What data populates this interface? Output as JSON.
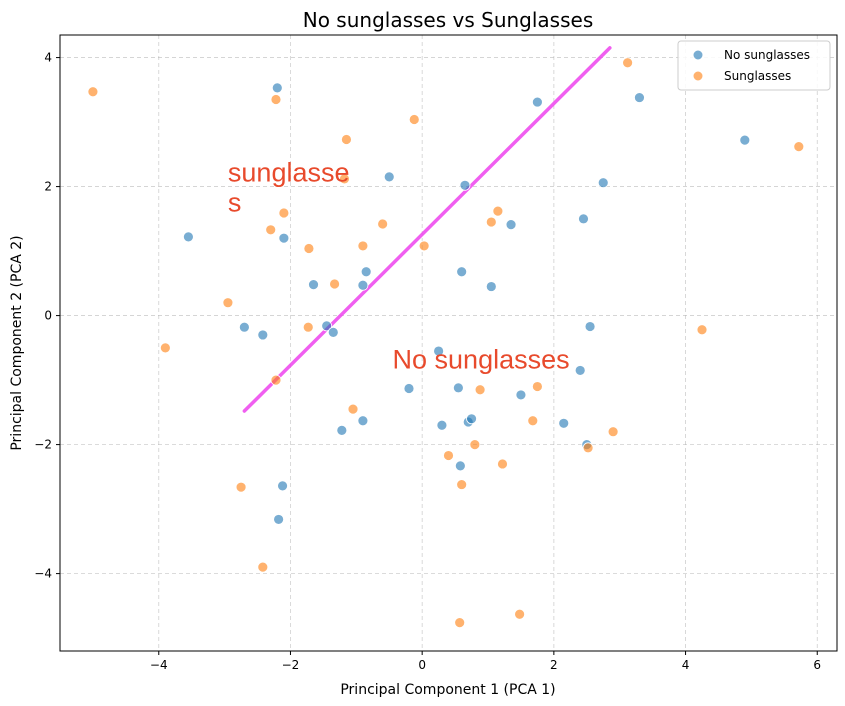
{
  "chart_data": {
    "type": "scatter",
    "title": "No sunglasses vs Sunglasses",
    "xlabel": "Principal Component 1 (PCA 1)",
    "ylabel": "Principal Component 2 (PCA 2)",
    "xlim": [
      -5.5,
      6.3
    ],
    "ylim": [
      -5.2,
      4.35
    ],
    "xticks": [
      -4,
      -2,
      0,
      2,
      4,
      6
    ],
    "yticks": [
      -4,
      -2,
      0,
      2,
      4
    ],
    "xtick_labels": [
      "−4",
      "−2",
      "0",
      "2",
      "4",
      "6"
    ],
    "ytick_labels": [
      "−4",
      "−2",
      "0",
      "2",
      "4"
    ],
    "grid": true,
    "legend_placement": "top-right",
    "series": [
      {
        "name": "No sunglasses",
        "color": "#1f77b4",
        "points": [
          [
            -2.2,
            3.53
          ],
          [
            -3.55,
            1.22
          ],
          [
            -2.1,
            1.2
          ],
          [
            -1.65,
            0.48
          ],
          [
            -0.85,
            0.68
          ],
          [
            -0.9,
            0.47
          ],
          [
            -0.5,
            2.15
          ],
          [
            0.65,
            2.02
          ],
          [
            0.6,
            0.68
          ],
          [
            1.05,
            0.45
          ],
          [
            1.35,
            1.41
          ],
          [
            1.75,
            3.31
          ],
          [
            2.45,
            1.5
          ],
          [
            2.75,
            2.06
          ],
          [
            3.3,
            3.38
          ],
          [
            4.9,
            2.72
          ],
          [
            -2.7,
            -0.18
          ],
          [
            -2.42,
            -0.3
          ],
          [
            -1.45,
            -0.16
          ],
          [
            -1.35,
            -0.26
          ],
          [
            0.25,
            -0.55
          ],
          [
            2.55,
            -0.17
          ],
          [
            2.4,
            -0.85
          ],
          [
            -0.2,
            -1.13
          ],
          [
            0.55,
            -1.12
          ],
          [
            1.5,
            -1.23
          ],
          [
            0.7,
            -1.65
          ],
          [
            0.75,
            -1.6
          ],
          [
            0.3,
            -1.7
          ],
          [
            2.15,
            -1.67
          ],
          [
            2.5,
            -2.0
          ],
          [
            -0.9,
            -1.63
          ],
          [
            -1.22,
            -1.78
          ],
          [
            0.58,
            -2.33
          ],
          [
            -2.12,
            -2.64
          ],
          [
            -2.18,
            -3.16
          ]
        ]
      },
      {
        "name": "Sunglasses",
        "color": "#ff7f0e",
        "points": [
          [
            -5.0,
            3.47
          ],
          [
            -2.22,
            3.35
          ],
          [
            -0.12,
            3.04
          ],
          [
            -1.15,
            2.73
          ],
          [
            -1.18,
            2.12
          ],
          [
            3.12,
            3.92
          ],
          [
            5.72,
            2.62
          ],
          [
            -2.1,
            1.59
          ],
          [
            -2.3,
            1.33
          ],
          [
            -1.72,
            1.04
          ],
          [
            -0.6,
            1.42
          ],
          [
            -0.9,
            1.08
          ],
          [
            0.03,
            1.08
          ],
          [
            1.05,
            1.45
          ],
          [
            1.15,
            1.62
          ],
          [
            -2.95,
            0.2
          ],
          [
            -1.33,
            0.49
          ],
          [
            -1.73,
            -0.18
          ],
          [
            -3.9,
            -0.5
          ],
          [
            4.25,
            -0.22
          ],
          [
            -2.22,
            -1.0
          ],
          [
            -1.05,
            -1.45
          ],
          [
            0.88,
            -1.15
          ],
          [
            1.75,
            -1.1
          ],
          [
            1.68,
            -1.63
          ],
          [
            2.9,
            -1.8
          ],
          [
            2.52,
            -2.05
          ],
          [
            0.8,
            -2.0
          ],
          [
            0.4,
            -2.17
          ],
          [
            1.22,
            -2.3
          ],
          [
            0.6,
            -2.62
          ],
          [
            -2.75,
            -2.66
          ],
          [
            -2.42,
            -3.9
          ],
          [
            1.48,
            -4.63
          ],
          [
            0.57,
            -4.76
          ]
        ]
      }
    ],
    "annotations": [
      {
        "kind": "line",
        "color": "#ee44ee",
        "from": [
          -2.7,
          -1.48
        ],
        "to": [
          2.85,
          4.15
        ]
      },
      {
        "kind": "text",
        "lines": [
          "sunglasse",
          "s"
        ],
        "color": "#e84a2c",
        "at": [
          -2.95,
          2.08
        ]
      },
      {
        "kind": "text",
        "lines": [
          "No sunglasses"
        ],
        "color": "#e84a2c",
        "at": [
          -0.45,
          -0.82
        ]
      }
    ]
  }
}
